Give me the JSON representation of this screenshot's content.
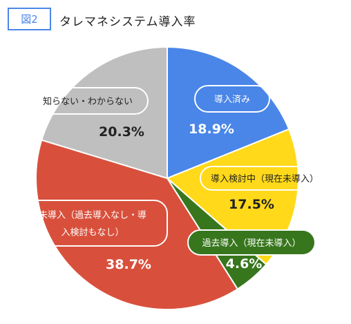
{
  "header": {
    "figure_label": "図2",
    "title": "タレマネシステム導入率"
  },
  "chart_data": {
    "type": "pie",
    "title": "タレマネシステム導入率",
    "start_angle": "12 o'clock",
    "direction": "clockwise",
    "slices": [
      {
        "label": "導入済み",
        "label_lines": [
          "導入済み"
        ],
        "value": 18.9,
        "value_label": "18.9%",
        "color": "#4a86e8",
        "label_color": "#ffffff",
        "pill_bg": "transparent"
      },
      {
        "label": "導入検討中（現在未導入）",
        "label_lines": [
          "導入検討中（現在未導入）"
        ],
        "value": 17.5,
        "value_label": "17.5%",
        "color": "#ffd91a",
        "label_color": "#222222",
        "pill_bg": "transparent"
      },
      {
        "label": "過去導入（現在未導入）",
        "label_lines": [
          "過去導入（現在未導入）"
        ],
        "value": 4.6,
        "value_label": "4.6%",
        "color": "#38761d",
        "label_color": "#ffffff",
        "pill_bg": "#38761d"
      },
      {
        "label": "未導入（過去導入なし・導入検討もなし）",
        "label_lines": [
          "未導入（過去導入なし・導",
          "入検討もなし）"
        ],
        "value": 38.7,
        "value_label": "38.7%",
        "color": "#d8503c",
        "label_color": "#ffffff",
        "pill_bg": "transparent"
      },
      {
        "label": "知らない・わからない",
        "label_lines": [
          "知らない・わからない"
        ],
        "value": 20.3,
        "value_label": "20.3%",
        "color": "#bfbfbf",
        "label_color": "#222222",
        "pill_bg": "transparent"
      }
    ]
  }
}
